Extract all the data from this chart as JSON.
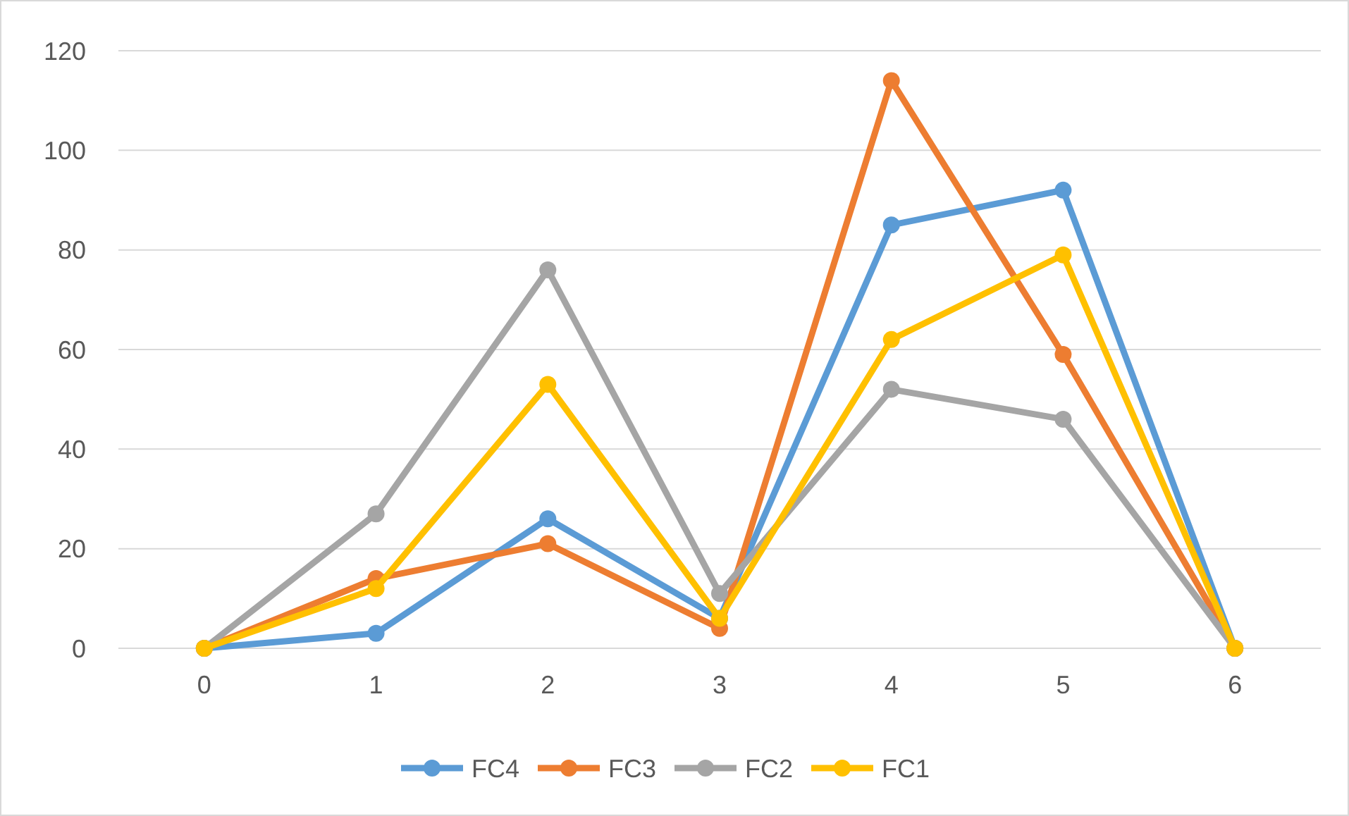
{
  "chart_data": {
    "type": "line",
    "categories": [
      "0",
      "1",
      "2",
      "3",
      "4",
      "5",
      "6"
    ],
    "series": [
      {
        "name": "FC4",
        "color": "#5b9bd5",
        "values": [
          0,
          3,
          26,
          6,
          85,
          92,
          0
        ]
      },
      {
        "name": "FC3",
        "color": "#ed7d31",
        "values": [
          0,
          14,
          21,
          4,
          114,
          59,
          0
        ]
      },
      {
        "name": "FC2",
        "color": "#a5a5a5",
        "values": [
          0,
          27,
          76,
          11,
          52,
          46,
          0
        ]
      },
      {
        "name": "FC1",
        "color": "#ffc000",
        "values": [
          0,
          12,
          53,
          6,
          62,
          79,
          0
        ]
      }
    ],
    "ylim": [
      0,
      120
    ],
    "yticks": [
      0,
      20,
      40,
      60,
      80,
      100,
      120
    ],
    "grid": "y",
    "legend": "bottom",
    "marker": "circle",
    "line_style": "solid"
  }
}
